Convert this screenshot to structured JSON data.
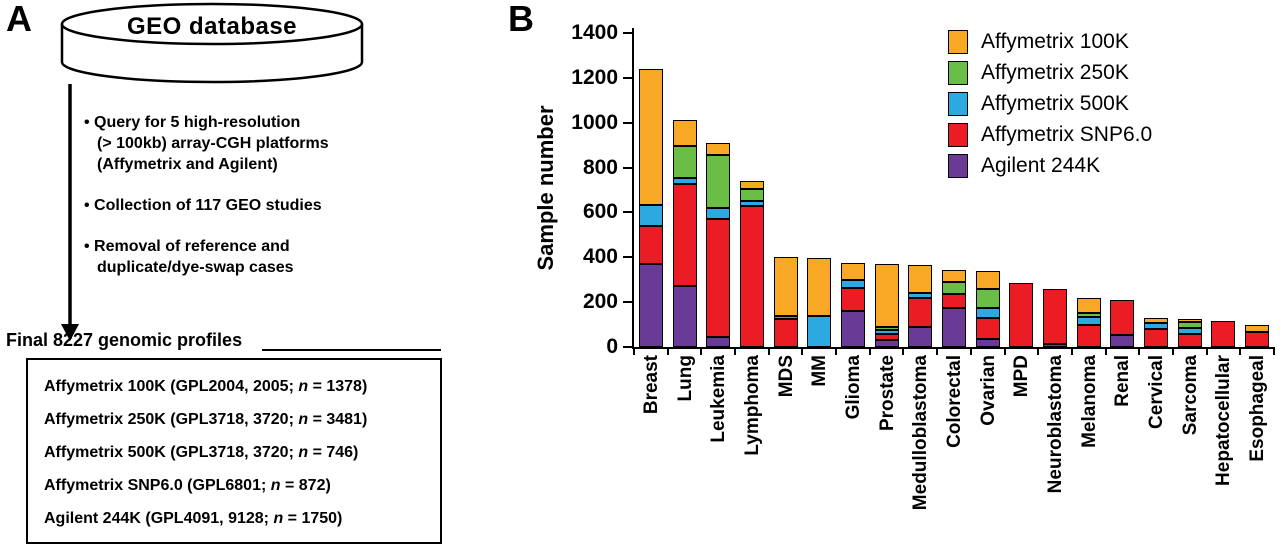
{
  "panel_a": {
    "label": "A",
    "database": "GEO database",
    "bullets": [
      "• Query for 5 high-resolution\n(> 100kb) array-CGH platforms\n(Affymetrix and Agilent)",
      "• Collection of 117 GEO studies",
      "• Removal of reference and\nduplicate/dye-swap cases"
    ],
    "final_heading": "Final 8227 genomic profiles",
    "profiles": [
      {
        "pre": "Affymetrix 100K (GPL2004, 2005; ",
        "n": "n",
        "post": " = 1378)"
      },
      {
        "pre": "Affymetrix 250K (GPL3718, 3720; ",
        "n": "n",
        "post": " = 3481)"
      },
      {
        "pre": "Affymetrix 500K (GPL3718, 3720; ",
        "n": "n",
        "post": " = 746)"
      },
      {
        "pre": "Affymetrix SNP6.0 (GPL6801; ",
        "n": "n",
        "post": " = 872)"
      },
      {
        "pre": "Agilent 244K (GPL4091, 9128; ",
        "n": "n",
        "post": " = 1750)"
      }
    ]
  },
  "panel_b": {
    "label": "B"
  },
  "chart_data": {
    "type": "bar",
    "stacked": true,
    "title": "",
    "xlabel": "",
    "ylabel": "Sample number",
    "ylim": [
      0,
      1400
    ],
    "yticks": [
      0,
      200,
      400,
      600,
      800,
      1000,
      1200,
      1400
    ],
    "grid": false,
    "legend_position": "top-right",
    "categories": [
      "Breast",
      "Lung",
      "Leukemia",
      "Lymphoma",
      "MDS",
      "MM",
      "Glioma",
      "Prostate",
      "Medulloblastoma",
      "Colorectal",
      "Ovarian",
      "MPD",
      "Neuroblastoma",
      "Melanoma",
      "Renal",
      "Cervical",
      "Sarcoma",
      "Hepatocellular",
      "Esophageal"
    ],
    "series": [
      {
        "name": "Agilent 244K",
        "color": "#6A3B96",
        "values": [
          370,
          270,
          45,
          0,
          0,
          0,
          160,
          30,
          90,
          175,
          35,
          0,
          15,
          0,
          55,
          0,
          0,
          0,
          0
        ]
      },
      {
        "name": "Affymetrix SNP6.0",
        "color": "#EC1C24",
        "values": [
          170,
          455,
          525,
          630,
          125,
          0,
          105,
          30,
          130,
          60,
          95,
          285,
          245,
          100,
          155,
          80,
          60,
          115,
          65
        ]
      },
      {
        "name": "Affymetrix 500K",
        "color": "#2BA9E0",
        "values": [
          95,
          30,
          50,
          20,
          15,
          140,
          35,
          15,
          20,
          0,
          45,
          0,
          0,
          35,
          0,
          25,
          25,
          0,
          0
        ]
      },
      {
        "name": "Affymetrix 250K",
        "color": "#6ABD45",
        "values": [
          0,
          140,
          235,
          55,
          0,
          0,
          0,
          15,
          0,
          55,
          85,
          0,
          0,
          15,
          0,
          0,
          25,
          0,
          0
        ]
      },
      {
        "name": "Affymetrix 100K",
        "color": "#F9A825",
        "values": [
          605,
          115,
          55,
          35,
          260,
          255,
          75,
          280,
          125,
          55,
          80,
          0,
          0,
          70,
          0,
          25,
          15,
          0,
          35
        ]
      }
    ],
    "legend_order": [
      "Affymetrix 100K",
      "Affymetrix 250K",
      "Affymetrix 500K",
      "Affymetrix SNP6.0",
      "Agilent 244K"
    ]
  }
}
